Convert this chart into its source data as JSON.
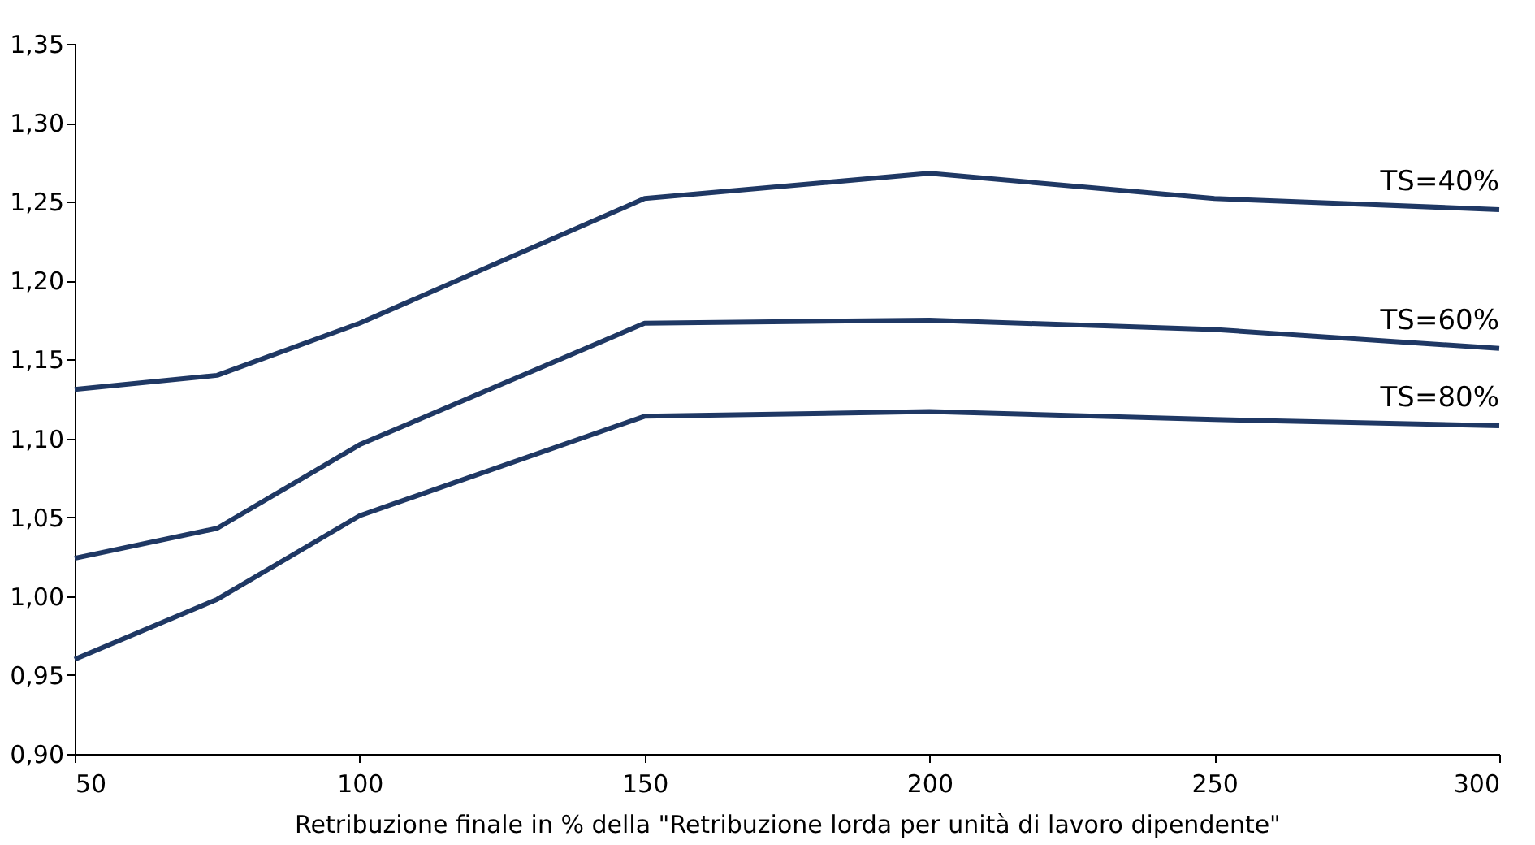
{
  "chart_data": {
    "type": "line",
    "xlabel": "Retribuzione finale in % della \"Retribuzione lorda per unità di lavoro dipendente\"",
    "x": [
      50,
      75,
      100,
      150,
      200,
      250,
      300
    ],
    "series": [
      {
        "name": "TS=40%",
        "color": "#1f3864",
        "values": [
          1.131,
          1.14,
          1.173,
          1.252,
          1.268,
          1.252,
          1.245
        ]
      },
      {
        "name": "TS=60%",
        "color": "#1f3864",
        "values": [
          1.024,
          1.043,
          1.096,
          1.173,
          1.175,
          1.169,
          1.157
        ]
      },
      {
        "name": "TS=80%",
        "color": "#1f3864",
        "values": [
          0.96,
          0.998,
          1.051,
          1.114,
          1.117,
          1.112,
          1.108
        ]
      }
    ],
    "xlim": [
      50,
      300
    ],
    "xticks": [
      50,
      100,
      150,
      200,
      250,
      300
    ],
    "ylim": [
      0.9,
      1.35
    ],
    "yticks": [
      {
        "value": 0.9,
        "label": "0,90"
      },
      {
        "value": 0.95,
        "label": "0,95"
      },
      {
        "value": 1.0,
        "label": "1,00"
      },
      {
        "value": 1.05,
        "label": "1,05"
      },
      {
        "value": 1.1,
        "label": "1,10"
      },
      {
        "value": 1.15,
        "label": "1,15"
      },
      {
        "value": 1.2,
        "label": "1,20"
      },
      {
        "value": 1.25,
        "label": "1,25"
      },
      {
        "value": 1.3,
        "label": "1,30"
      },
      {
        "value": 1.35,
        "label": "1,35"
      }
    ],
    "grid": false,
    "legend": false,
    "marker": "none",
    "line_style": "solid"
  }
}
